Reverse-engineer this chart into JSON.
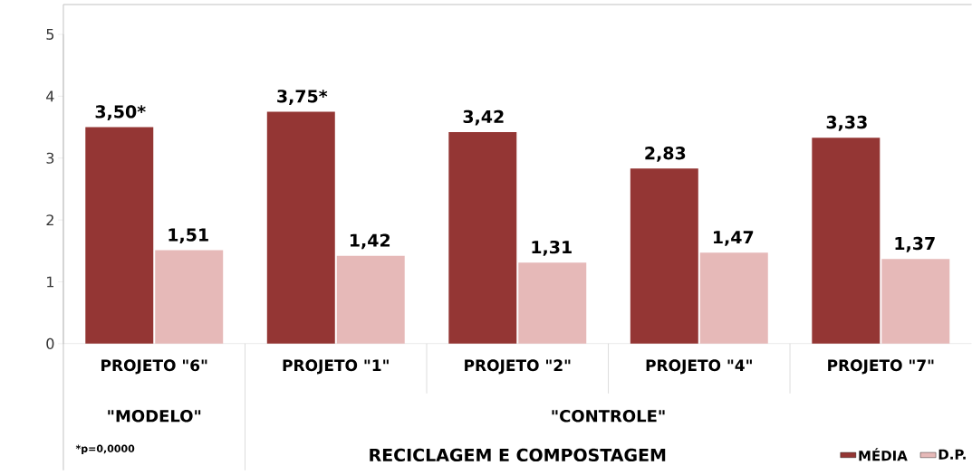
{
  "chart_data": {
    "type": "bar",
    "xlabel": "RECICLAGEM E COMPOSTAGEM",
    "categories": [
      "PROJETO \"6\"",
      "PROJETO \"1\"",
      "PROJETO \"2\"",
      "PROJETO \"4\"",
      "PROJETO \"7\""
    ],
    "series": [
      {
        "name": "MÉDIA",
        "color": "#943634",
        "values": [
          3.5,
          3.75,
          3.42,
          2.83,
          3.33
        ],
        "value_labels": [
          "3,50*",
          "3,75*",
          "3,42",
          "2,83",
          "3,33"
        ]
      },
      {
        "name": "D.P.",
        "color": "#e6b9b8",
        "values": [
          1.51,
          1.42,
          1.31,
          1.47,
          1.37
        ],
        "value_labels": [
          "1,51",
          "1,42",
          "1,31",
          "1,47",
          "1,37"
        ]
      }
    ],
    "ylim": [
      0,
      5
    ],
    "yticks": [
      0,
      1,
      2,
      3,
      4,
      5
    ],
    "legend": "bottom right",
    "annotations": [
      "\"MODELO\"",
      "\"CONTROLE\"",
      "*p=0,0000"
    ]
  }
}
